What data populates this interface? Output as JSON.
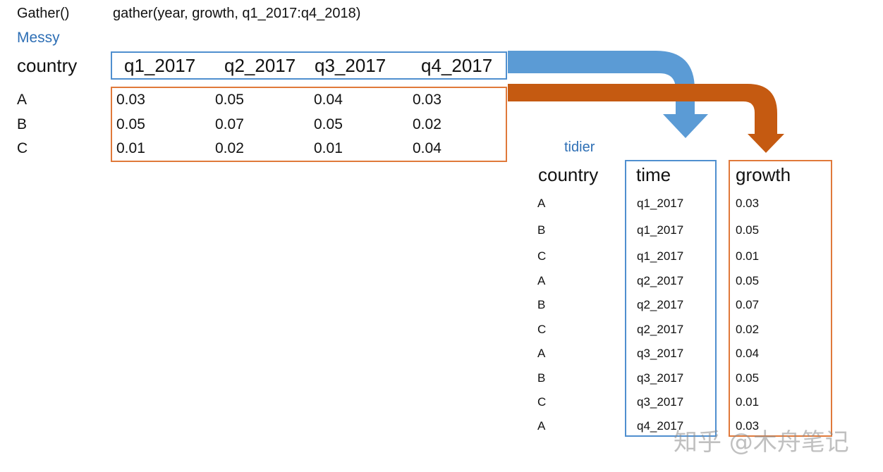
{
  "title": "Gather()",
  "code": "gather(year, growth, q1_2017:q4_2018)",
  "messy": {
    "label": "Messy",
    "key_header": "country",
    "columns": [
      "q1_2017",
      "q2_2017",
      "q3_2017",
      "q4_2017"
    ],
    "rows": [
      {
        "country": "A",
        "values": [
          "0.03",
          "0.05",
          "0.04",
          "0.03"
        ]
      },
      {
        "country": "B",
        "values": [
          "0.05",
          "0.07",
          "0.05",
          "0.02"
        ]
      },
      {
        "country": "C",
        "values": [
          "0.01",
          "0.02",
          "0.01",
          "0.04"
        ]
      }
    ]
  },
  "tidier": {
    "label": "tidier",
    "headers": {
      "country": "country",
      "time": "time",
      "growth": "growth"
    },
    "rows": [
      {
        "country": "A",
        "time": "q1_2017",
        "growth": "0.03"
      },
      {
        "country": "B",
        "time": "q1_2017",
        "growth": "0.05"
      },
      {
        "country": "C",
        "time": "q1_2017",
        "growth": "0.01"
      },
      {
        "country": "A",
        "time": "q2_2017",
        "growth": "0.05"
      },
      {
        "country": "B",
        "time": "q2_2017",
        "growth": "0.07"
      },
      {
        "country": "C",
        "time": "q2_2017",
        "growth": "0.02"
      },
      {
        "country": "A",
        "time": "q3_2017",
        "growth": "0.04"
      },
      {
        "country": "B",
        "time": "q3_2017",
        "growth": "0.05"
      },
      {
        "country": "C",
        "time": "q3_2017",
        "growth": "0.01"
      },
      {
        "country": "A",
        "time": "q4_2017",
        "growth": "0.03"
      }
    ]
  },
  "colors": {
    "blue": "#5b9bd5",
    "orange": "#c55a11",
    "label_blue": "#2e6fb5"
  },
  "watermark": "知乎 @木舟笔记"
}
